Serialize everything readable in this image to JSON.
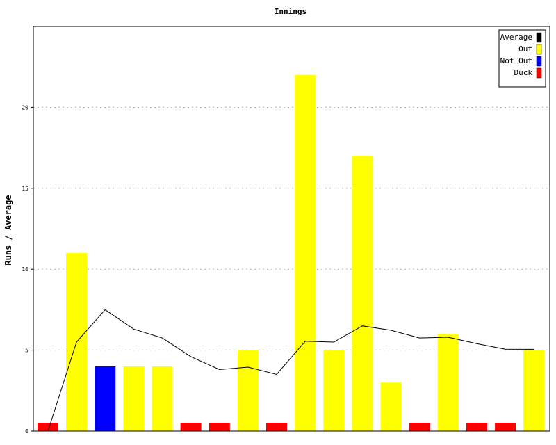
{
  "chart_data": {
    "type": "bar",
    "title": "Innings",
    "ylabel": "Runs / Average",
    "ylim": [
      0,
      25
    ],
    "yticks": [
      0,
      5,
      10,
      15,
      20
    ],
    "grid": true,
    "legend_position": "top-right",
    "legend": [
      {
        "label": "Average",
        "color": "#000000"
      },
      {
        "label": "Out",
        "color": "#ffff00"
      },
      {
        "label": "Not Out",
        "color": "#0000ff"
      },
      {
        "label": "Duck",
        "color": "#ff0000"
      }
    ],
    "bars": [
      {
        "value": 0,
        "type": "Duck"
      },
      {
        "value": 11,
        "type": "Out"
      },
      {
        "value": 4,
        "type": "Not Out"
      },
      {
        "value": 4,
        "type": "Out"
      },
      {
        "value": 4,
        "type": "Out"
      },
      {
        "value": 0,
        "type": "Duck"
      },
      {
        "value": 0,
        "type": "Duck"
      },
      {
        "value": 5,
        "type": "Out"
      },
      {
        "value": 0,
        "type": "Duck"
      },
      {
        "value": 22,
        "type": "Out"
      },
      {
        "value": 5,
        "type": "Out"
      },
      {
        "value": 17,
        "type": "Out"
      },
      {
        "value": 3,
        "type": "Out"
      },
      {
        "value": 0,
        "type": "Duck"
      },
      {
        "value": 6,
        "type": "Out"
      },
      {
        "value": 0,
        "type": "Duck"
      },
      {
        "value": 0,
        "type": "Duck"
      },
      {
        "value": 5,
        "type": "Out"
      }
    ],
    "average": [
      0,
      5.5,
      7.5,
      6.3,
      5.75,
      4.6,
      3.8,
      3.95,
      3.5,
      5.55,
      5.5,
      6.5,
      6.23,
      5.75,
      5.8,
      5.4,
      5.06,
      5.05
    ]
  }
}
